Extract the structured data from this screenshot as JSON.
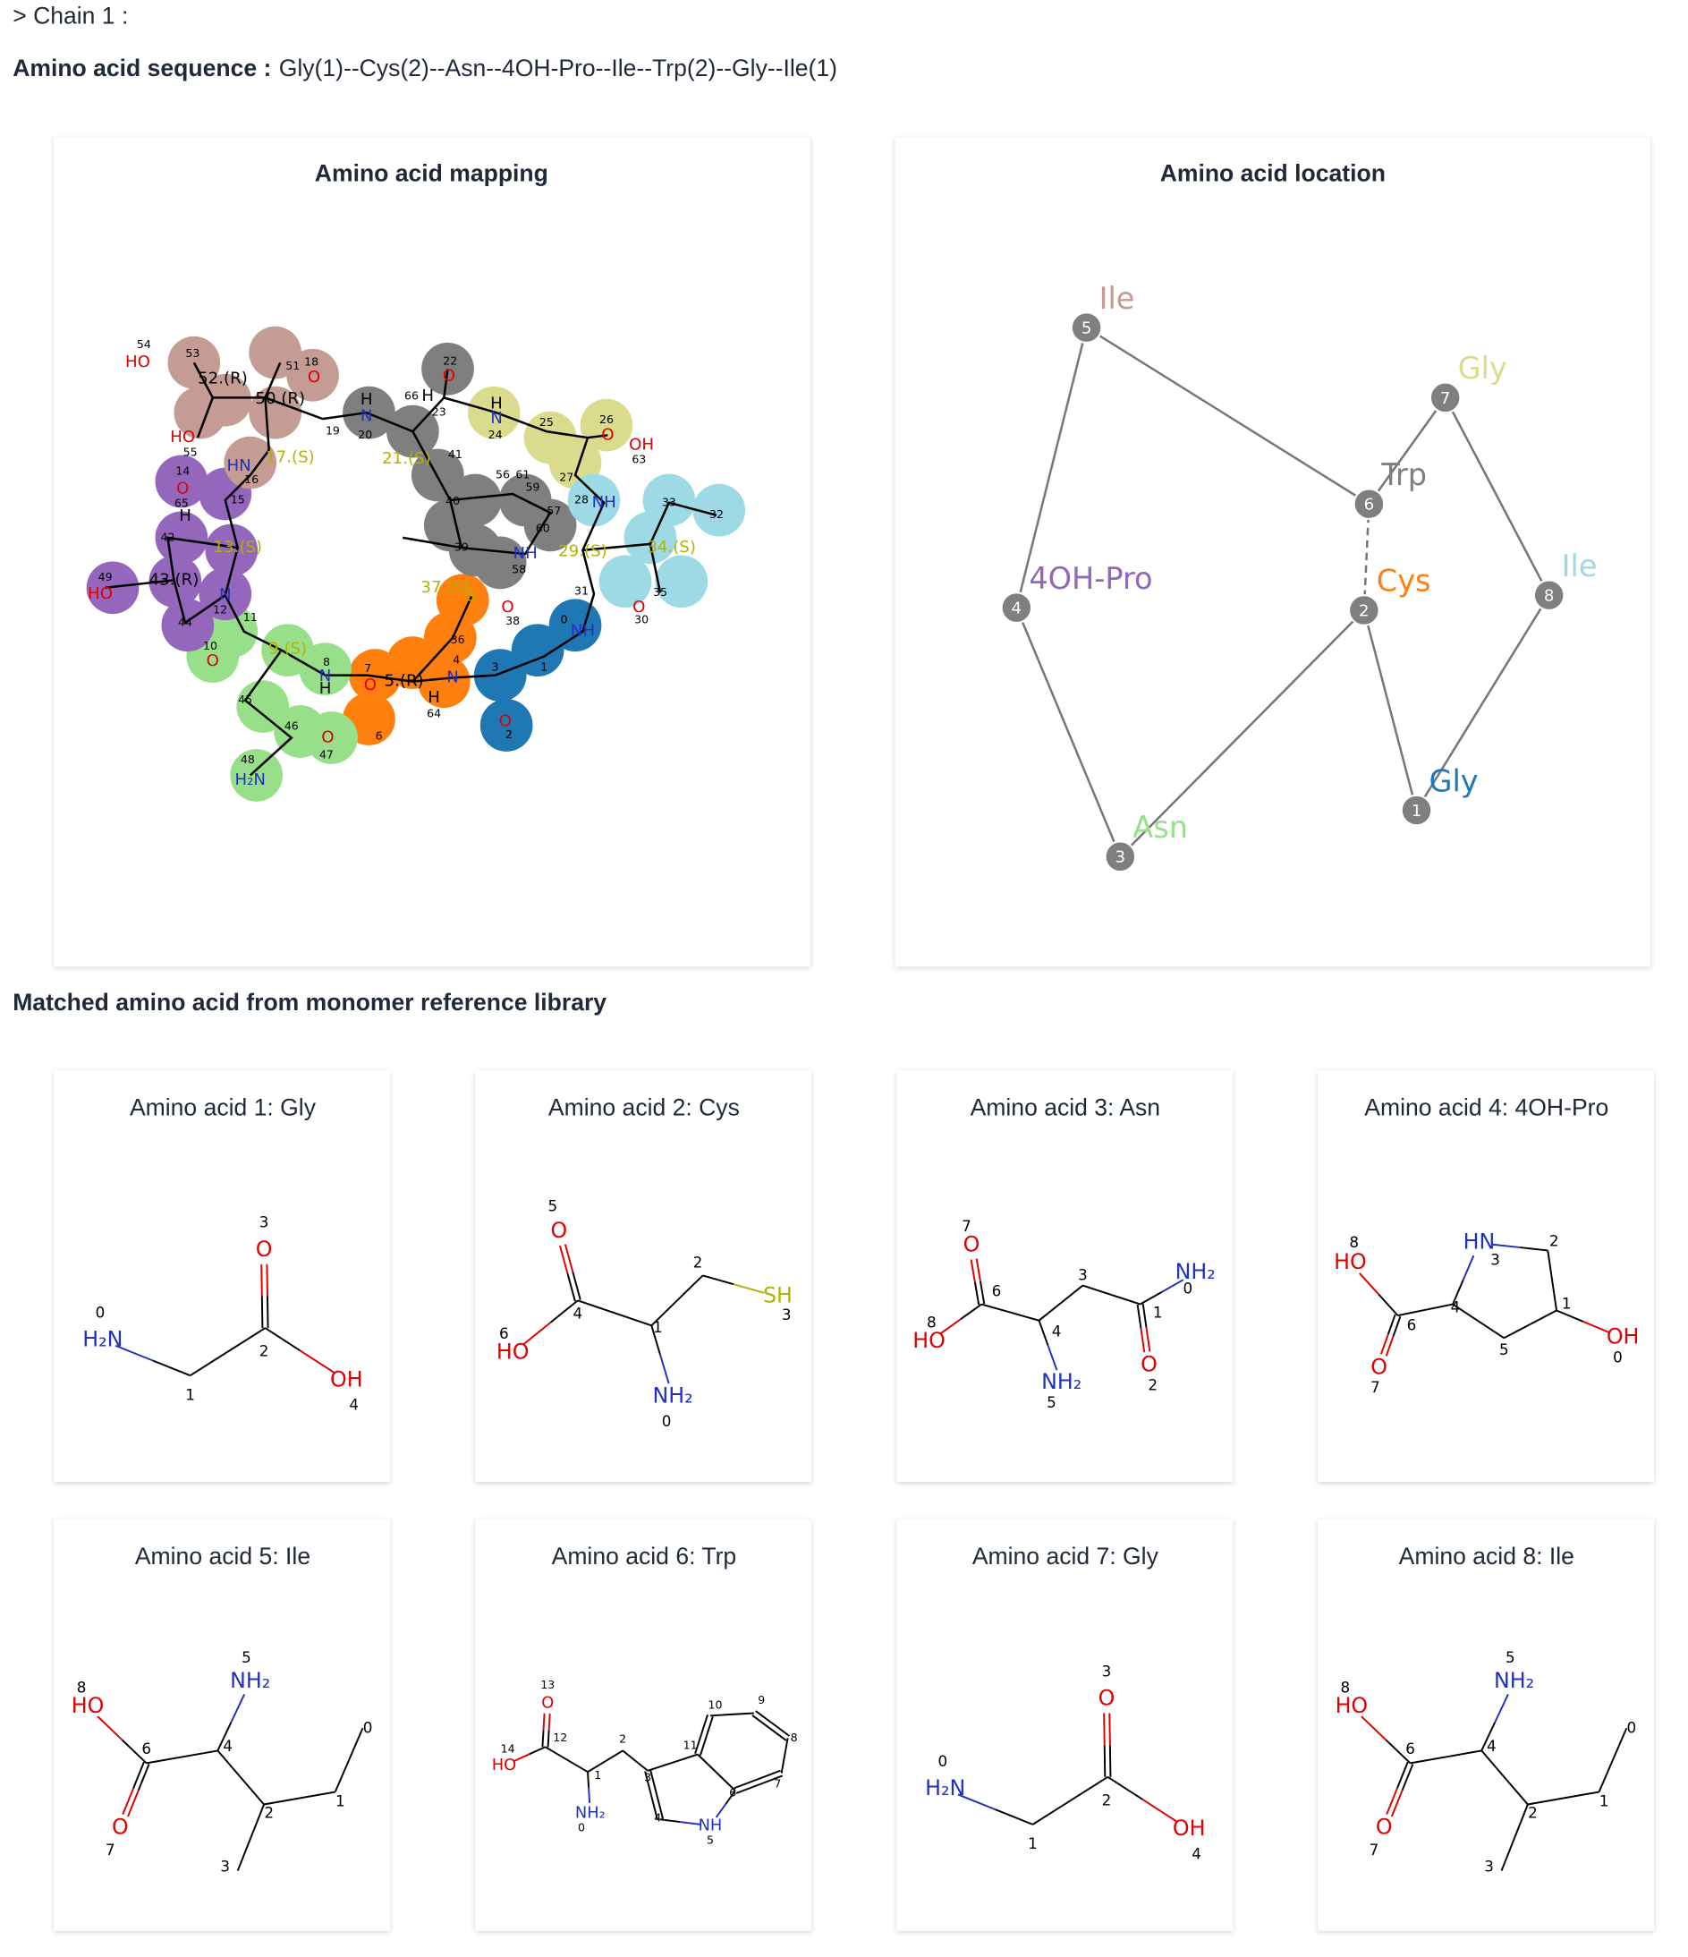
{
  "header": {
    "chain": "> Chain 1 :",
    "sequence_label": "Amino acid sequence :",
    "sequence": "Gly(1)--Cys(2)--Asn--4OH-Pro--Ile--Trp(2)--Gly--Ile(1)"
  },
  "mapping": {
    "title": "Amino acid mapping",
    "labels": [
      "54",
      "HO",
      "53",
      "52.(R)",
      "51",
      "18",
      "O",
      "50.(R)",
      "19",
      "HO",
      "55",
      "HN",
      "16",
      "17.(S)",
      "H",
      "N",
      "20",
      "22",
      "O",
      "66",
      "H",
      "23",
      "21.(S)",
      "41",
      "H",
      "N",
      "24",
      "25",
      "26",
      "O",
      "OH",
      "63",
      "27",
      "14",
      "O",
      "65",
      "15",
      "H",
      "42",
      "13.(S)",
      "NH",
      "28",
      "33",
      "32",
      "40",
      "56",
      "61",
      "59",
      "57",
      "60",
      "39",
      "NH",
      "58",
      "29.(S)",
      "34.(S)",
      "49",
      "HO",
      "43.(R)",
      "N",
      "12",
      "35",
      "31",
      "37.(S)",
      "S",
      "O",
      "38",
      "O",
      "30",
      "44",
      "11",
      "0",
      "NH",
      "10",
      "O",
      "9.(S)",
      "8",
      "N",
      "H",
      "36",
      "4",
      "1",
      "7",
      "O",
      "5.(R)",
      "N",
      "3",
      "45",
      "H",
      "64",
      "6",
      "O",
      "2",
      "46",
      "O",
      "47",
      "48",
      "H₂N"
    ]
  },
  "location": {
    "title": "Amino acid location",
    "nodes": [
      {
        "number": "1",
        "label": "Gly",
        "color": "#1f77b4"
      },
      {
        "number": "2",
        "label": "Cys",
        "color": "#ff7f0e"
      },
      {
        "number": "3",
        "label": "Asn",
        "color": "#98df8a"
      },
      {
        "number": "4",
        "label": "4OH-Pro",
        "color": "#9467bd"
      },
      {
        "number": "5",
        "label": "Ile",
        "color": "#c49c94"
      },
      {
        "number": "6",
        "label": "Trp",
        "color": "#7f7f7f"
      },
      {
        "number": "7",
        "label": "Gly",
        "color": "#dbdb8d"
      },
      {
        "number": "8",
        "label": "Ile",
        "color": "#9edae5"
      }
    ],
    "edges": [
      [
        5,
        4
      ],
      [
        4,
        3
      ],
      [
        3,
        2
      ],
      [
        2,
        1
      ],
      [
        1,
        8
      ],
      [
        8,
        7
      ],
      [
        7,
        6
      ],
      [
        6,
        5
      ]
    ],
    "dashed_edges": [
      [
        2,
        6
      ]
    ]
  },
  "library": {
    "title": "Matched amino acid from monomer reference library",
    "cards": [
      {
        "title": "Amino acid 1: Gly",
        "atoms": [
          {
            "index": 0,
            "symbol": "H₂N"
          },
          {
            "index": 1
          },
          {
            "index": 2
          },
          {
            "index": 3,
            "symbol": "O"
          },
          {
            "index": 4,
            "symbol": "OH"
          }
        ]
      },
      {
        "title": "Amino acid 2: Cys",
        "atoms": [
          {
            "index": 0,
            "symbol": "NH₂"
          },
          {
            "index": 1
          },
          {
            "index": 2
          },
          {
            "index": 3,
            "symbol": "SH"
          },
          {
            "index": 4
          },
          {
            "index": 5,
            "symbol": "O"
          },
          {
            "index": 6,
            "symbol": "HO"
          }
        ]
      },
      {
        "title": "Amino acid 3: Asn",
        "atoms": [
          {
            "index": 0,
            "symbol": "NH₂"
          },
          {
            "index": 1
          },
          {
            "index": 2,
            "symbol": "O"
          },
          {
            "index": 3
          },
          {
            "index": 4
          },
          {
            "index": 5,
            "symbol": "NH₂"
          },
          {
            "index": 6
          },
          {
            "index": 7,
            "symbol": "O"
          },
          {
            "index": 8,
            "symbol": "HO"
          }
        ]
      },
      {
        "title": "Amino acid 4: 4OH-Pro",
        "atoms": [
          {
            "index": 0,
            "symbol": "OH"
          },
          {
            "index": 1
          },
          {
            "index": 2
          },
          {
            "index": 3,
            "symbol": "HN"
          },
          {
            "index": 4
          },
          {
            "index": 5
          },
          {
            "index": 6
          },
          {
            "index": 7,
            "symbol": "O"
          },
          {
            "index": 8,
            "symbol": "HO"
          }
        ]
      },
      {
        "title": "Amino acid 5: Ile",
        "atoms": [
          {
            "index": 0
          },
          {
            "index": 1
          },
          {
            "index": 2
          },
          {
            "index": 3
          },
          {
            "index": 4
          },
          {
            "index": 5,
            "symbol": "NH₂"
          },
          {
            "index": 6
          },
          {
            "index": 7,
            "symbol": "O"
          },
          {
            "index": 8,
            "symbol": "HO"
          }
        ]
      },
      {
        "title": "Amino acid 6: Trp",
        "atoms": [
          {
            "index": 0,
            "symbol": "NH₂"
          },
          {
            "index": 1
          },
          {
            "index": 2
          },
          {
            "index": 3
          },
          {
            "index": 4
          },
          {
            "index": 5,
            "symbol": "NH"
          },
          {
            "index": 6
          },
          {
            "index": 7
          },
          {
            "index": 8
          },
          {
            "index": 9
          },
          {
            "index": 10
          },
          {
            "index": 11
          },
          {
            "index": 12
          },
          {
            "index": 13,
            "symbol": "O"
          },
          {
            "index": 14,
            "symbol": "HO"
          }
        ]
      },
      {
        "title": "Amino acid 7: Gly",
        "atoms": [
          {
            "index": 0,
            "symbol": "H₂N"
          },
          {
            "index": 1
          },
          {
            "index": 2
          },
          {
            "index": 3,
            "symbol": "O"
          },
          {
            "index": 4,
            "symbol": "OH"
          }
        ]
      },
      {
        "title": "Amino acid 8: Ile",
        "atoms": [
          {
            "index": 0
          },
          {
            "index": 1
          },
          {
            "index": 2
          },
          {
            "index": 3
          },
          {
            "index": 4
          },
          {
            "index": 5,
            "symbol": "NH₂"
          },
          {
            "index": 6
          },
          {
            "index": 7,
            "symbol": "O"
          },
          {
            "index": 8,
            "symbol": "HO"
          }
        ]
      }
    ]
  }
}
